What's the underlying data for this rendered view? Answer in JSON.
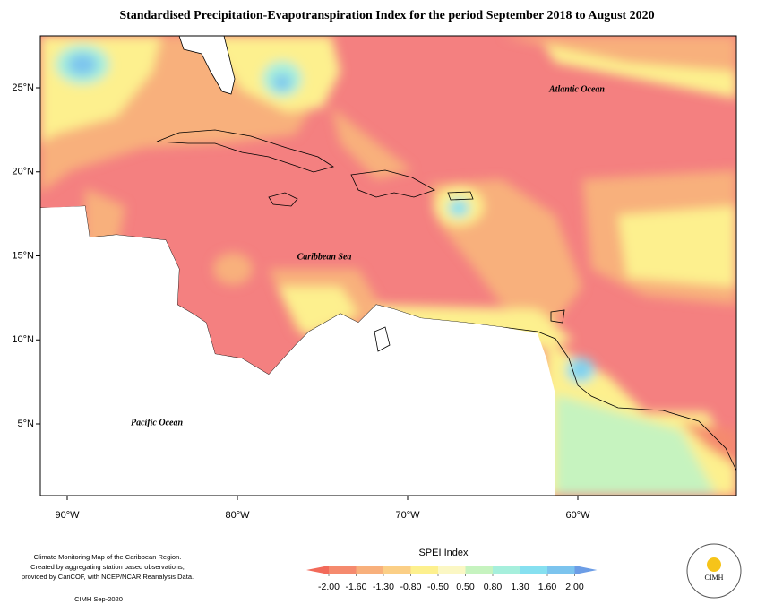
{
  "title": "Standardised Precipitation-Evapotranspiration Index for the period September 2018 to August 2020",
  "map": {
    "labels": [
      "Atlantic Ocean",
      "Caribbean Sea",
      "Pacific Ocean"
    ],
    "lon_ticks": [
      {
        "value": -90,
        "label": "90°W"
      },
      {
        "value": -80,
        "label": "80°W"
      },
      {
        "value": -70,
        "label": "70°W"
      },
      {
        "value": -60,
        "label": "60°W"
      }
    ],
    "lat_ticks": [
      {
        "value": 25,
        "label": "25°N"
      },
      {
        "value": 20,
        "label": "20°N"
      },
      {
        "value": 15,
        "label": "15°N"
      },
      {
        "value": 10,
        "label": "10°N"
      },
      {
        "value": 5,
        "label": "5°N"
      }
    ]
  },
  "legend": {
    "title": "SPEI Index",
    "ticks": [
      {
        "value": -2,
        "label": "-2.00"
      },
      {
        "value": -1.6,
        "label": "-1.60"
      },
      {
        "value": -1.3,
        "label": "-1.30"
      },
      {
        "value": -0.8,
        "label": "-0.80"
      },
      {
        "value": -0.5,
        "label": "-0.50"
      },
      {
        "value": 0.5,
        "label": "0.50"
      },
      {
        "value": 0.8,
        "label": "0.80"
      },
      {
        "value": 1.3,
        "label": "1.30"
      },
      {
        "value": 1.6,
        "label": "1.60"
      },
      {
        "value": 2,
        "label": "2.00"
      }
    ],
    "colors": [
      "#f26a5a",
      "#f58a6e",
      "#f8b07c",
      "#fbcf86",
      "#fdf08e",
      "#fbf7c4",
      "#c6f3bf",
      "#a6efdc",
      "#86e0f0",
      "#7cc4ee",
      "#6c9de6"
    ]
  },
  "footer": {
    "lines": [
      "Climate Monitoring Map of the Caribbean Region.",
      "Created by aggregating station based observations,",
      "provided by CariCOF, with NCEP/NCAR Reanalysis Data."
    ],
    "credit": "CIMH Sep-2020",
    "logo": "CIMH"
  }
}
